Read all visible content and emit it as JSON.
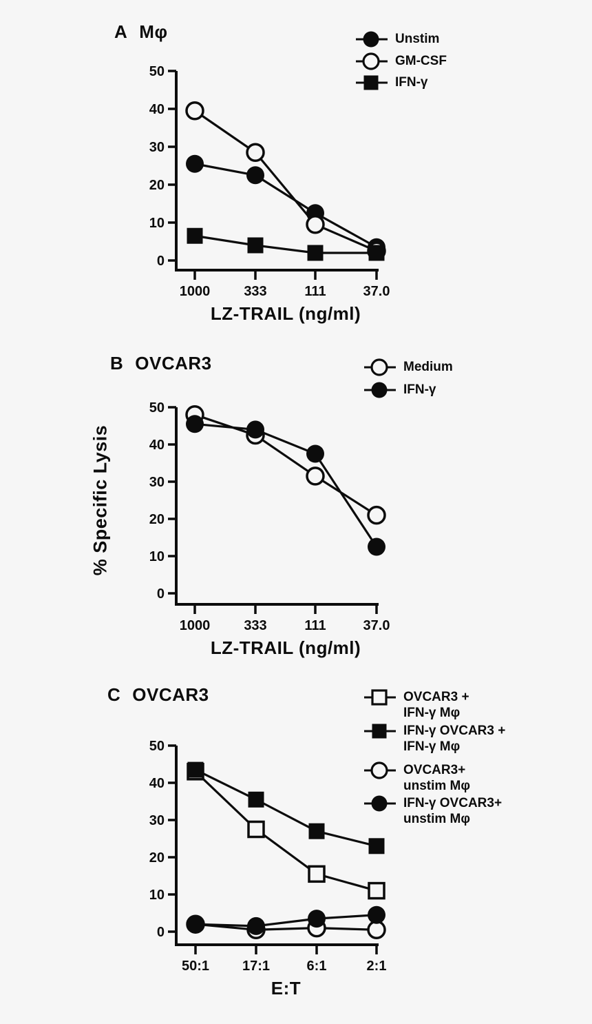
{
  "figure": {
    "bg_color": "#f6f6f6",
    "ink_color": "#0c0c0c"
  },
  "chart_data": [
    {
      "type": "line",
      "panel_letter": "A",
      "panel_title": "Mφ",
      "xlabel": "LZ-TRAIL (ng/ml)",
      "ylabel": "",
      "x_categories": [
        "1000",
        "333",
        "111",
        "37.0"
      ],
      "ylim": [
        0,
        50
      ],
      "yticks": [
        0,
        10,
        20,
        30,
        40,
        50
      ],
      "grid": false,
      "legend_position": "top-right",
      "series": [
        {
          "name": "Unstim",
          "marker": "circle-filled",
          "legend_lines": [
            "Unstim"
          ],
          "values": [
            25.5,
            22.5,
            12.5,
            3.5
          ]
        },
        {
          "name": "GM-CSF",
          "marker": "circle-open",
          "legend_lines": [
            "GM-CSF"
          ],
          "values": [
            39.5,
            28.5,
            9.5,
            2.5
          ]
        },
        {
          "name": "IFN-γ",
          "marker": "square-filled",
          "legend_lines": [
            "IFN-γ"
          ],
          "values": [
            6.5,
            4,
            2,
            2
          ]
        }
      ]
    },
    {
      "type": "line",
      "panel_letter": "B",
      "panel_title": "OVCAR3",
      "xlabel": "LZ-TRAIL (ng/ml)",
      "ylabel": "% Specific Lysis",
      "x_categories": [
        "1000",
        "333",
        "111",
        "37.0"
      ],
      "ylim": [
        0,
        50
      ],
      "yticks": [
        0,
        10,
        20,
        30,
        40,
        50
      ],
      "grid": false,
      "legend_position": "top-right",
      "series": [
        {
          "name": "Medium",
          "marker": "circle-open",
          "legend_lines": [
            "Medium"
          ],
          "values": [
            48,
            42.5,
            31.5,
            21
          ]
        },
        {
          "name": "IFN-γ",
          "marker": "circle-filled",
          "legend_lines": [
            "IFN-γ"
          ],
          "values": [
            45.5,
            44,
            37.5,
            12.5
          ]
        }
      ]
    },
    {
      "type": "line",
      "panel_letter": "C",
      "panel_title": "OVCAR3",
      "xlabel": "E:T",
      "ylabel": "",
      "x_categories": [
        "50:1",
        "17:1",
        "6:1",
        "2:1"
      ],
      "ylim": [
        0,
        50
      ],
      "yticks": [
        0,
        10,
        20,
        30,
        40,
        50
      ],
      "grid": false,
      "legend_position": "top-right",
      "series": [
        {
          "name": "OVCAR3 + IFN-γ Mφ",
          "marker": "square-open",
          "legend_lines": [
            "OVCAR3 +",
            "IFN-γ Mφ"
          ],
          "values": [
            43,
            27.5,
            15.5,
            11
          ]
        },
        {
          "name": "IFN-γ OVCAR3 + IFN-γ Mφ",
          "marker": "square-filled",
          "legend_lines": [
            "IFN-γ OVCAR3 +",
            "IFN-γ Mφ"
          ],
          "values": [
            43.5,
            35.5,
            27,
            23
          ]
        },
        {
          "name": "OVCAR3+ unstim Mφ",
          "marker": "circle-open",
          "legend_lines": [
            "OVCAR3+",
            "unstim Mφ"
          ],
          "values": [
            2,
            0.5,
            1,
            0.5
          ]
        },
        {
          "name": "IFN-γ OVCAR3+ unstim Mφ",
          "marker": "circle-filled",
          "legend_lines": [
            "IFN-γ OVCAR3+",
            "unstim Mφ"
          ],
          "values": [
            2,
            1.5,
            3.5,
            4.5
          ]
        }
      ]
    }
  ]
}
